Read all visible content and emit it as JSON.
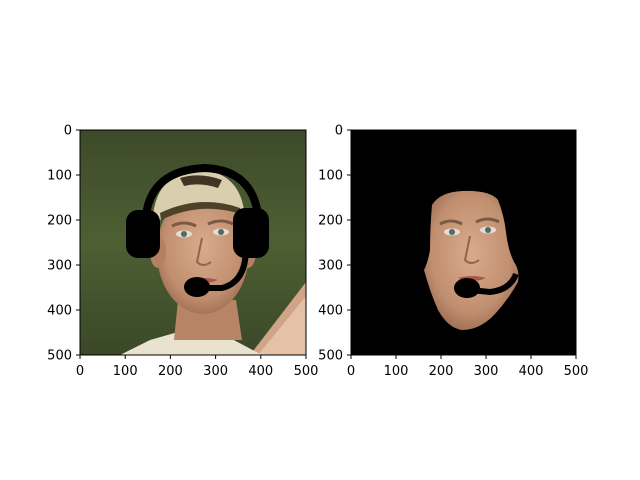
{
  "panels": [
    {
      "name": "Original with headset overlay",
      "image_content": "Photo of a young man's face wearing a light-colored cap, with a black headset (headband, two ear cups and boom microphone) overlaid",
      "x_ticks": [
        "0",
        "100",
        "200",
        "300",
        "400",
        "500"
      ],
      "y_ticks": [
        "0",
        "100",
        "200",
        "300",
        "400",
        "500"
      ]
    },
    {
      "name": "Masked face with headset overlay",
      "image_content": "Same face segmented on a black background, with the boom microphone of the headset overlaid",
      "x_ticks": [
        "0",
        "100",
        "200",
        "300",
        "400",
        "500"
      ],
      "y_ticks": [
        "0",
        "100",
        "200",
        "300",
        "400",
        "500"
      ]
    }
  ],
  "colors": {
    "background_left_dark": "#2e3a22",
    "background_left_light": "#5c6e3d",
    "skin": "#c99a7c",
    "skin_shadow": "#a8775a",
    "cap": "#d8ceae",
    "cap_band": "#4a3f26",
    "shirt": "#e6e0cd",
    "headset": "#000000",
    "mask_background": "#000000"
  }
}
